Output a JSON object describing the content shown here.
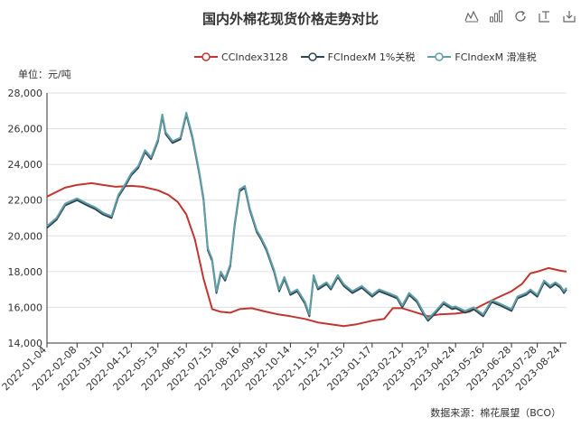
{
  "title": "国内外棉花现货价格走势对比",
  "unit_label": "单位：元/吨",
  "source_label": "数据来源：棉花展望（BCO）",
  "toolbox": [
    "line-chart-icon",
    "bar-chart-icon",
    "restore-icon",
    "data-view-icon",
    "save-image-icon"
  ],
  "colors": {
    "cc": "#c23531",
    "m1": "#2f4554",
    "mSlide": "#61a0a8"
  },
  "chart_data": {
    "type": "line",
    "title": "国内外棉花现货价格走势对比",
    "ylabel": "单位：元/吨",
    "ylim": [
      14000,
      28000
    ],
    "yticks": [
      14000,
      16000,
      18000,
      20000,
      22000,
      24000,
      26000,
      28000
    ],
    "ytick_labels": [
      "14,000",
      "16,000",
      "18,000",
      "20,000",
      "22,000",
      "24,000",
      "26,000",
      "28,000"
    ],
    "x_tick_labels": [
      "2022-01-04",
      "2022-02-08",
      "2022-03-10",
      "2022-04-12",
      "2022-05-13",
      "2022-06-15",
      "2022-07-15",
      "2022-08-16",
      "2022-09-16",
      "2022-10-14",
      "2022-11-15",
      "2022-12-15",
      "2023-01-17",
      "2023-02-21",
      "2023-03-23",
      "2023-04-24",
      "2023-05-26",
      "2023-06-28",
      "2023-07-28",
      "2023-08-24"
    ],
    "legend_position": "top",
    "series": [
      {
        "name": "CCIndex3128",
        "color": "#c23531",
        "points": [
          [
            "2022-01-04",
            22200
          ],
          [
            "2022-01-25",
            22700
          ],
          [
            "2022-02-08",
            22850
          ],
          [
            "2022-02-25",
            22950
          ],
          [
            "2022-03-10",
            22850
          ],
          [
            "2022-03-25",
            22750
          ],
          [
            "2022-04-12",
            22800
          ],
          [
            "2022-04-25",
            22750
          ],
          [
            "2022-05-13",
            22550
          ],
          [
            "2022-05-25",
            22300
          ],
          [
            "2022-06-05",
            21900
          ],
          [
            "2022-06-15",
            21200
          ],
          [
            "2022-06-25",
            19800
          ],
          [
            "2022-07-05",
            17600
          ],
          [
            "2022-07-15",
            15900
          ],
          [
            "2022-07-25",
            15750
          ],
          [
            "2022-08-05",
            15700
          ],
          [
            "2022-08-16",
            15900
          ],
          [
            "2022-08-30",
            15950
          ],
          [
            "2022-09-16",
            15750
          ],
          [
            "2022-09-30",
            15600
          ],
          [
            "2022-10-14",
            15500
          ],
          [
            "2022-10-31",
            15350
          ],
          [
            "2022-11-15",
            15150
          ],
          [
            "2022-11-30",
            15050
          ],
          [
            "2022-12-15",
            14950
          ],
          [
            "2022-12-30",
            15050
          ],
          [
            "2023-01-17",
            15250
          ],
          [
            "2023-01-31",
            15350
          ],
          [
            "2023-02-10",
            15950
          ],
          [
            "2023-02-21",
            15950
          ],
          [
            "2023-03-10",
            15700
          ],
          [
            "2023-03-23",
            15500
          ],
          [
            "2023-04-05",
            15600
          ],
          [
            "2023-04-24",
            15650
          ],
          [
            "2023-05-10",
            15750
          ],
          [
            "2023-05-26",
            16150
          ],
          [
            "2023-06-10",
            16500
          ],
          [
            "2023-06-28",
            16900
          ],
          [
            "2023-07-10",
            17300
          ],
          [
            "2023-07-20",
            17900
          ],
          [
            "2023-07-28",
            18000
          ],
          [
            "2023-08-10",
            18200
          ],
          [
            "2023-08-24",
            18050
          ],
          [
            "2023-08-31",
            18000
          ]
        ]
      },
      {
        "name": "FCIndexM 1%关税",
        "color": "#2f4554",
        "points": [
          [
            "2022-01-04",
            20450
          ],
          [
            "2022-01-15",
            20900
          ],
          [
            "2022-01-25",
            21700
          ],
          [
            "2022-02-08",
            22000
          ],
          [
            "2022-02-20",
            21700
          ],
          [
            "2022-03-01",
            21500
          ],
          [
            "2022-03-10",
            21200
          ],
          [
            "2022-03-20",
            21000
          ],
          [
            "2022-03-28",
            22200
          ],
          [
            "2022-04-05",
            22800
          ],
          [
            "2022-04-12",
            23400
          ],
          [
            "2022-04-20",
            23800
          ],
          [
            "2022-04-28",
            24700
          ],
          [
            "2022-05-05",
            24300
          ],
          [
            "2022-05-13",
            25300
          ],
          [
            "2022-05-18",
            26700
          ],
          [
            "2022-05-22",
            25700
          ],
          [
            "2022-05-30",
            25200
          ],
          [
            "2022-06-08",
            25400
          ],
          [
            "2022-06-15",
            26800
          ],
          [
            "2022-06-22",
            25500
          ],
          [
            "2022-06-30",
            23500
          ],
          [
            "2022-07-05",
            22000
          ],
          [
            "2022-07-10",
            19200
          ],
          [
            "2022-07-15",
            18600
          ],
          [
            "2022-07-20",
            16800
          ],
          [
            "2022-07-25",
            17900
          ],
          [
            "2022-07-30",
            17500
          ],
          [
            "2022-08-05",
            18300
          ],
          [
            "2022-08-10",
            20500
          ],
          [
            "2022-08-16",
            22500
          ],
          [
            "2022-08-22",
            22700
          ],
          [
            "2022-08-28",
            21400
          ],
          [
            "2022-09-05",
            20200
          ],
          [
            "2022-09-10",
            19800
          ],
          [
            "2022-09-16",
            19200
          ],
          [
            "2022-09-25",
            18000
          ],
          [
            "2022-10-01",
            16900
          ],
          [
            "2022-10-07",
            17600
          ],
          [
            "2022-10-14",
            16700
          ],
          [
            "2022-10-22",
            16900
          ],
          [
            "2022-10-31",
            16200
          ],
          [
            "2022-11-05",
            15500
          ],
          [
            "2022-11-10",
            17700
          ],
          [
            "2022-11-15",
            17000
          ],
          [
            "2022-11-25",
            17300
          ],
          [
            "2022-11-30",
            17000
          ],
          [
            "2022-12-08",
            17700
          ],
          [
            "2022-12-15",
            17200
          ],
          [
            "2022-12-25",
            16800
          ],
          [
            "2023-01-05",
            17100
          ],
          [
            "2023-01-17",
            16600
          ],
          [
            "2023-01-25",
            16900
          ],
          [
            "2023-02-05",
            16700
          ],
          [
            "2023-02-15",
            16500
          ],
          [
            "2023-02-21",
            16000
          ],
          [
            "2023-03-01",
            16700
          ],
          [
            "2023-03-10",
            16300
          ],
          [
            "2023-03-18",
            15600
          ],
          [
            "2023-03-23",
            15250
          ],
          [
            "2023-04-01",
            15700
          ],
          [
            "2023-04-10",
            16200
          ],
          [
            "2023-04-20",
            15900
          ],
          [
            "2023-04-24",
            15950
          ],
          [
            "2023-05-05",
            15700
          ],
          [
            "2023-05-15",
            15900
          ],
          [
            "2023-05-26",
            15500
          ],
          [
            "2023-06-05",
            16300
          ],
          [
            "2023-06-15",
            16100
          ],
          [
            "2023-06-28",
            15800
          ],
          [
            "2023-07-05",
            16500
          ],
          [
            "2023-07-15",
            16700
          ],
          [
            "2023-07-20",
            16900
          ],
          [
            "2023-07-28",
            16600
          ],
          [
            "2023-08-05",
            17400
          ],
          [
            "2023-08-12",
            17100
          ],
          [
            "2023-08-18",
            17300
          ],
          [
            "2023-08-24",
            17100
          ],
          [
            "2023-08-28",
            16800
          ],
          [
            "2023-08-31",
            17000
          ]
        ]
      },
      {
        "name": "FCIndexM 滑准税",
        "color": "#61a0a8",
        "points": [
          [
            "2022-01-04",
            20550
          ],
          [
            "2022-01-15",
            21000
          ],
          [
            "2022-01-25",
            21800
          ],
          [
            "2022-02-08",
            22100
          ],
          [
            "2022-02-20",
            21800
          ],
          [
            "2022-03-01",
            21600
          ],
          [
            "2022-03-10",
            21300
          ],
          [
            "2022-03-20",
            21100
          ],
          [
            "2022-03-28",
            22300
          ],
          [
            "2022-04-05",
            22900
          ],
          [
            "2022-04-12",
            23500
          ],
          [
            "2022-04-20",
            23900
          ],
          [
            "2022-04-28",
            24800
          ],
          [
            "2022-05-05",
            24400
          ],
          [
            "2022-05-13",
            25400
          ],
          [
            "2022-05-18",
            26800
          ],
          [
            "2022-05-22",
            25800
          ],
          [
            "2022-05-30",
            25300
          ],
          [
            "2022-06-08",
            25500
          ],
          [
            "2022-06-15",
            26900
          ],
          [
            "2022-06-22",
            25600
          ],
          [
            "2022-06-30",
            23600
          ],
          [
            "2022-07-05",
            22100
          ],
          [
            "2022-07-10",
            19300
          ],
          [
            "2022-07-15",
            18700
          ],
          [
            "2022-07-20",
            16900
          ],
          [
            "2022-07-25",
            18000
          ],
          [
            "2022-07-30",
            17600
          ],
          [
            "2022-08-05",
            18400
          ],
          [
            "2022-08-10",
            20600
          ],
          [
            "2022-08-16",
            22600
          ],
          [
            "2022-08-22",
            22800
          ],
          [
            "2022-08-28",
            21500
          ],
          [
            "2022-09-05",
            20300
          ],
          [
            "2022-09-10",
            19900
          ],
          [
            "2022-09-16",
            19300
          ],
          [
            "2022-09-25",
            18100
          ],
          [
            "2022-10-01",
            17000
          ],
          [
            "2022-10-07",
            17700
          ],
          [
            "2022-10-14",
            16800
          ],
          [
            "2022-10-22",
            17000
          ],
          [
            "2022-10-31",
            16300
          ],
          [
            "2022-11-05",
            15600
          ],
          [
            "2022-11-10",
            17800
          ],
          [
            "2022-11-15",
            17100
          ],
          [
            "2022-11-25",
            17400
          ],
          [
            "2022-11-30",
            17100
          ],
          [
            "2022-12-08",
            17800
          ],
          [
            "2022-12-15",
            17300
          ],
          [
            "2022-12-25",
            16900
          ],
          [
            "2023-01-05",
            17200
          ],
          [
            "2023-01-17",
            16700
          ],
          [
            "2023-01-25",
            17000
          ],
          [
            "2023-02-05",
            16800
          ],
          [
            "2023-02-15",
            16600
          ],
          [
            "2023-02-21",
            16100
          ],
          [
            "2023-03-01",
            16800
          ],
          [
            "2023-03-10",
            16400
          ],
          [
            "2023-03-18",
            15700
          ],
          [
            "2023-03-23",
            15350
          ],
          [
            "2023-04-01",
            15800
          ],
          [
            "2023-04-10",
            16300
          ],
          [
            "2023-04-20",
            16000
          ],
          [
            "2023-04-24",
            16050
          ],
          [
            "2023-05-05",
            15800
          ],
          [
            "2023-05-15",
            16000
          ],
          [
            "2023-05-26",
            15600
          ],
          [
            "2023-06-05",
            16400
          ],
          [
            "2023-06-15",
            16200
          ],
          [
            "2023-06-28",
            15900
          ],
          [
            "2023-07-05",
            16600
          ],
          [
            "2023-07-15",
            16800
          ],
          [
            "2023-07-20",
            17000
          ],
          [
            "2023-07-28",
            16700
          ],
          [
            "2023-08-05",
            17500
          ],
          [
            "2023-08-12",
            17200
          ],
          [
            "2023-08-18",
            17400
          ],
          [
            "2023-08-24",
            17200
          ],
          [
            "2023-08-28",
            16900
          ],
          [
            "2023-08-31",
            17100
          ]
        ]
      }
    ]
  }
}
